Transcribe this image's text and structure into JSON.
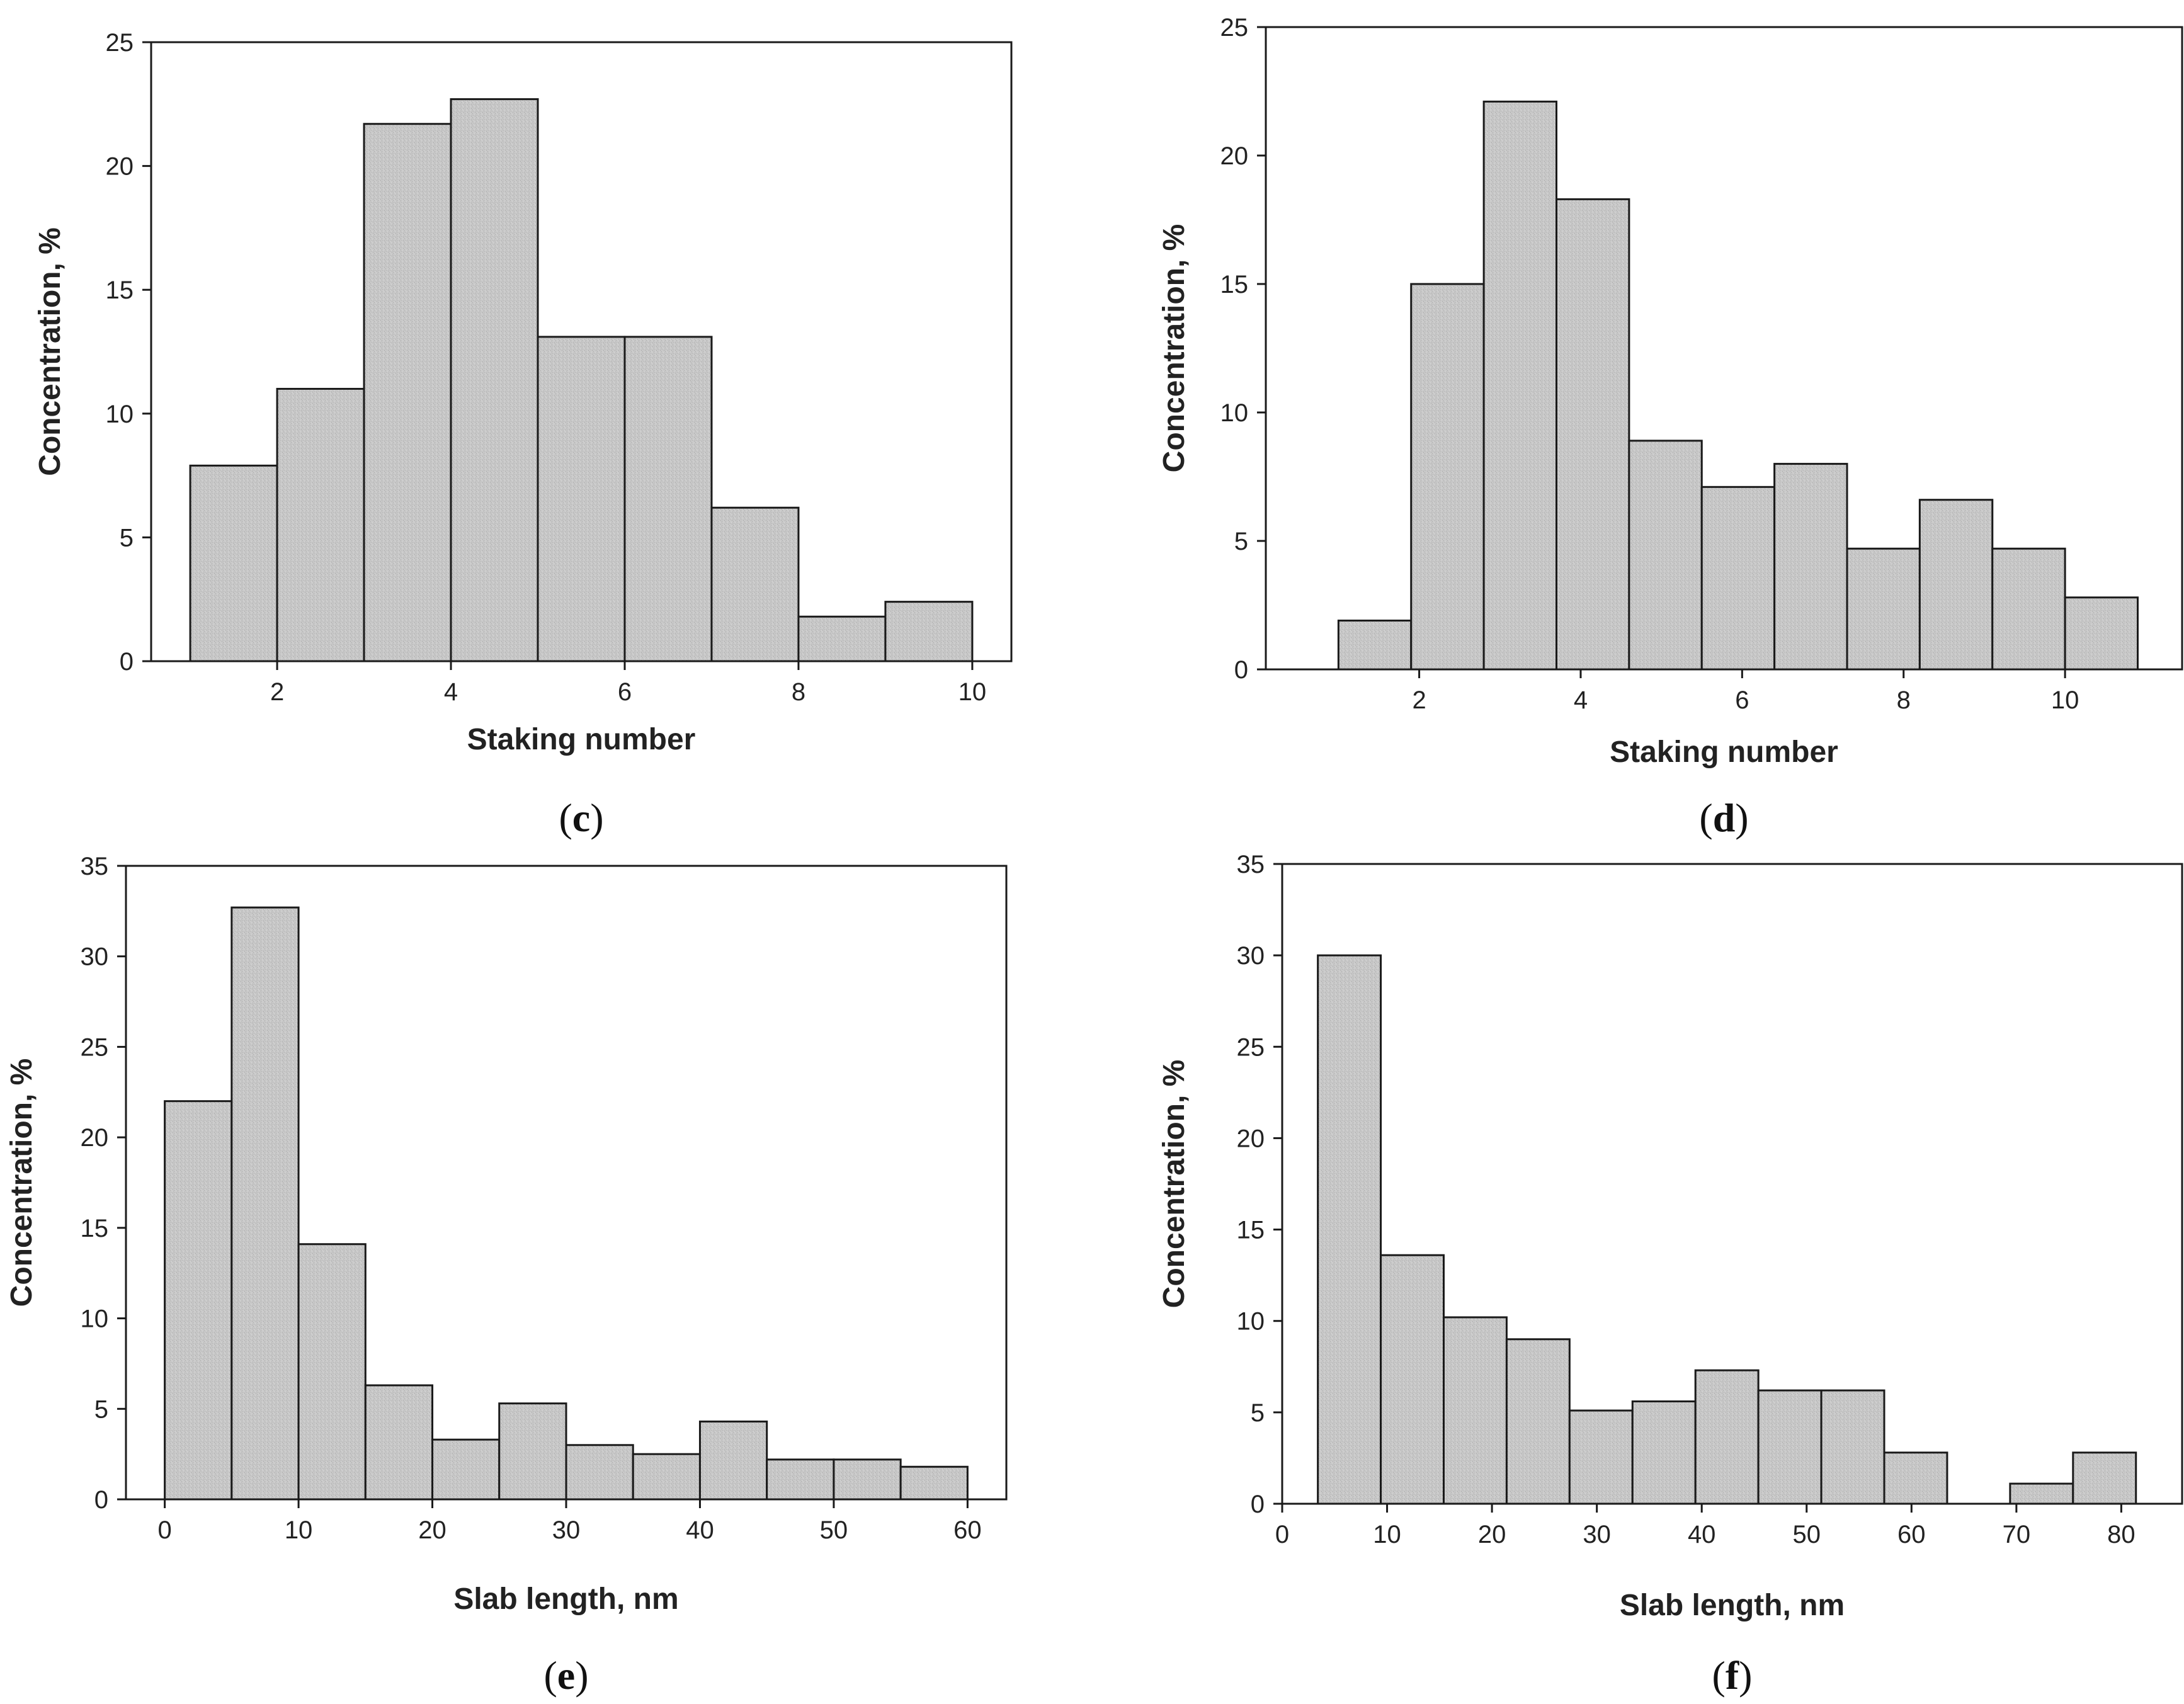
{
  "chart_data": [
    {
      "id": "c",
      "type": "bar",
      "panel_label": "c",
      "xlabel": "Staking number",
      "ylabel": "Concentration, %",
      "xlim": [
        0.55,
        10.45
      ],
      "ylim": [
        0,
        25
      ],
      "xticks": [
        2,
        4,
        6,
        8,
        10
      ],
      "yticks": [
        0,
        5,
        10,
        15,
        20,
        25
      ],
      "bars": [
        {
          "x0": 1,
          "x1": 2,
          "value": 7.9
        },
        {
          "x0": 2,
          "x1": 3,
          "value": 11.0
        },
        {
          "x0": 3,
          "x1": 4,
          "value": 21.7
        },
        {
          "x0": 4,
          "x1": 5,
          "value": 22.7
        },
        {
          "x0": 5,
          "x1": 6,
          "value": 13.1
        },
        {
          "x0": 6,
          "x1": 7,
          "value": 13.1
        },
        {
          "x0": 7,
          "x1": 8,
          "value": 6.2
        },
        {
          "x0": 8,
          "x1": 9,
          "value": 1.8
        },
        {
          "x0": 9,
          "x1": 10,
          "value": 2.4
        }
      ]
    },
    {
      "id": "d",
      "type": "bar",
      "panel_label": "d",
      "xlabel": "Staking number",
      "ylabel": "Concentration, %",
      "xlim": [
        0.1,
        11.45
      ],
      "ylim": [
        0,
        25
      ],
      "xticks": [
        2,
        4,
        6,
        8,
        10
      ],
      "yticks": [
        0,
        5,
        10,
        15,
        20,
        25
      ],
      "bars": [
        {
          "x0": 1.0,
          "x1": 1.9,
          "value": 1.9
        },
        {
          "x0": 1.9,
          "x1": 2.8,
          "value": 15.0
        },
        {
          "x0": 2.8,
          "x1": 3.7,
          "value": 22.1
        },
        {
          "x0": 3.7,
          "x1": 4.6,
          "value": 18.3
        },
        {
          "x0": 4.6,
          "x1": 5.5,
          "value": 8.9
        },
        {
          "x0": 5.5,
          "x1": 6.4,
          "value": 7.1
        },
        {
          "x0": 6.4,
          "x1": 7.3,
          "value": 8.0
        },
        {
          "x0": 7.3,
          "x1": 8.2,
          "value": 4.7
        },
        {
          "x0": 8.2,
          "x1": 9.1,
          "value": 6.6
        },
        {
          "x0": 9.1,
          "x1": 10.0,
          "value": 4.7
        },
        {
          "x0": 10.0,
          "x1": 10.9,
          "value": 2.8
        }
      ]
    },
    {
      "id": "e",
      "type": "bar",
      "panel_label": "e",
      "xlabel": "Slab length, nm",
      "ylabel": "Concentration, %",
      "xlim": [
        -2.9,
        62.9
      ],
      "ylim": [
        0,
        35
      ],
      "xticks": [
        0,
        10,
        20,
        30,
        40,
        50,
        60
      ],
      "yticks": [
        0,
        5,
        10,
        15,
        20,
        25,
        30,
        35
      ],
      "bars": [
        {
          "x0": 0,
          "x1": 5,
          "value": 22.0
        },
        {
          "x0": 5,
          "x1": 10,
          "value": 32.7
        },
        {
          "x0": 10,
          "x1": 15,
          "value": 14.1
        },
        {
          "x0": 15,
          "x1": 20,
          "value": 6.3
        },
        {
          "x0": 20,
          "x1": 25,
          "value": 3.3
        },
        {
          "x0": 25,
          "x1": 30,
          "value": 5.3
        },
        {
          "x0": 30,
          "x1": 35,
          "value": 3.0
        },
        {
          "x0": 35,
          "x1": 40,
          "value": 2.5
        },
        {
          "x0": 40,
          "x1": 45,
          "value": 4.3
        },
        {
          "x0": 45,
          "x1": 50,
          "value": 2.2
        },
        {
          "x0": 50,
          "x1": 55,
          "value": 2.2
        },
        {
          "x0": 55,
          "x1": 60,
          "value": 1.8
        }
      ]
    },
    {
      "id": "f",
      "type": "bar",
      "panel_label": "f",
      "xlabel": "Slab length, nm",
      "ylabel": "Concentration, %",
      "xlim": [
        0,
        85.8
      ],
      "ylim": [
        0,
        35
      ],
      "xticks": [
        0,
        10,
        20,
        30,
        40,
        50,
        60,
        70,
        80
      ],
      "yticks": [
        0,
        5,
        10,
        15,
        20,
        25,
        30,
        35
      ],
      "bars": [
        {
          "x0": 3.4,
          "x1": 9.4,
          "value": 30.0
        },
        {
          "x0": 9.4,
          "x1": 15.4,
          "value": 13.6
        },
        {
          "x0": 15.4,
          "x1": 21.4,
          "value": 10.2
        },
        {
          "x0": 21.4,
          "x1": 27.4,
          "value": 9.0
        },
        {
          "x0": 27.4,
          "x1": 33.4,
          "value": 5.1
        },
        {
          "x0": 33.4,
          "x1": 39.4,
          "value": 5.6
        },
        {
          "x0": 39.4,
          "x1": 45.4,
          "value": 7.3
        },
        {
          "x0": 45.4,
          "x1": 51.4,
          "value": 6.2
        },
        {
          "x0": 51.4,
          "x1": 57.4,
          "value": 6.2
        },
        {
          "x0": 57.4,
          "x1": 63.4,
          "value": 2.8
        },
        {
          "x0": 69.4,
          "x1": 75.4,
          "value": 1.1
        },
        {
          "x0": 75.4,
          "x1": 81.4,
          "value": 2.8
        }
      ]
    }
  ]
}
